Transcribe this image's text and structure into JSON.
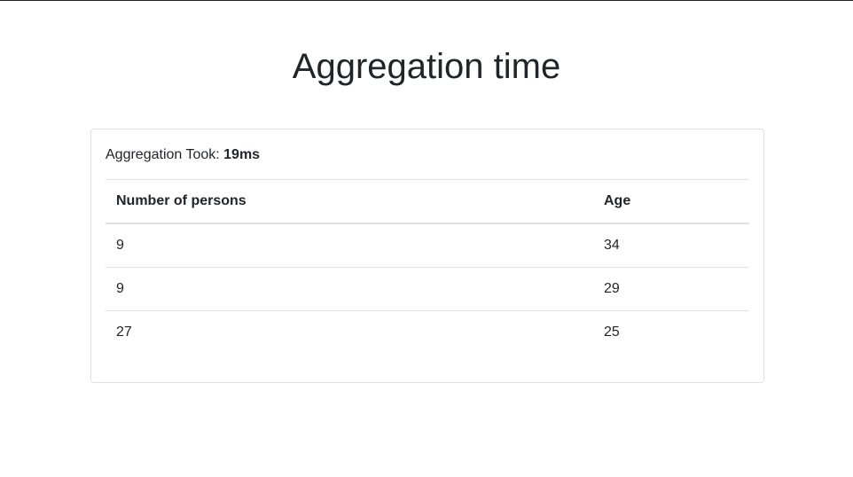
{
  "page": {
    "title": "Aggregation time"
  },
  "summary": {
    "label": "Aggregation Took: ",
    "value": "19ms"
  },
  "table": {
    "headers": [
      "Number of persons",
      "Age"
    ],
    "rows": [
      [
        "9",
        "34"
      ],
      [
        "9",
        "29"
      ],
      [
        "27",
        "25"
      ]
    ]
  }
}
